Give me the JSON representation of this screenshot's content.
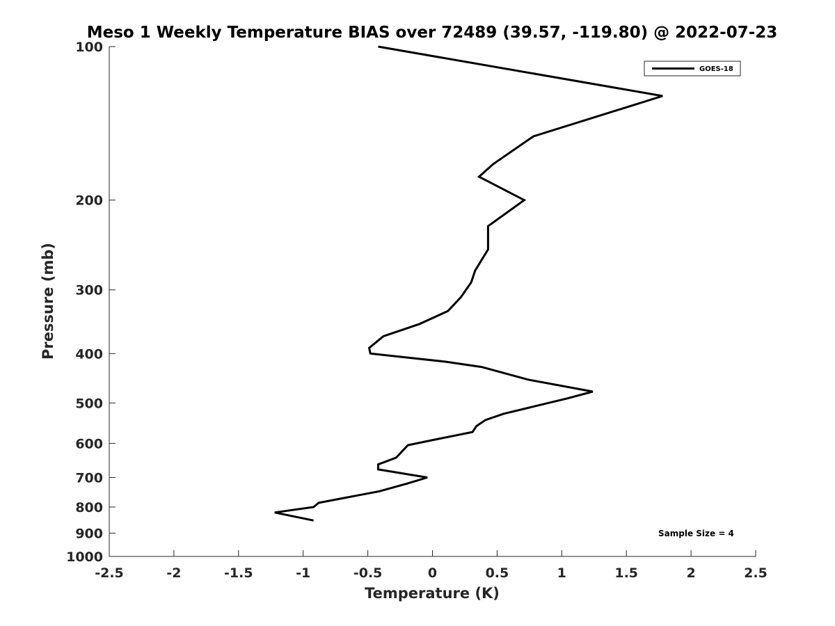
{
  "chart_data": {
    "type": "line",
    "title": "Meso 1 Weekly Temperature BIAS over 72489 (39.57, -119.80) @ 2022-07-23",
    "xlabel": "Temperature (K)",
    "ylabel": "Pressure (mb)",
    "xlim": [
      -2.5,
      2.5
    ],
    "ylim": [
      100,
      1000
    ],
    "y_scale": "log",
    "y_reversed": true,
    "x_ticks": [
      "-2.5",
      "-2",
      "-1.5",
      "-1",
      "-0.5",
      "0",
      "0.5",
      "1",
      "1.5",
      "2",
      "2.5"
    ],
    "y_ticks": [
      "100",
      "200",
      "300",
      "400",
      "500",
      "600",
      "700",
      "800",
      "900",
      "1000"
    ],
    "grid": false,
    "legend": {
      "placement": "top-right",
      "entries": [
        "GOES-18"
      ]
    },
    "annotation": "Sample Size = 4",
    "series": [
      {
        "name": "GOES-18",
        "color": "#000000",
        "points": [
          {
            "x": -0.42,
            "y": 100
          },
          {
            "x": 1.78,
            "y": 125
          },
          {
            "x": 0.78,
            "y": 150
          },
          {
            "x": 0.47,
            "y": 170
          },
          {
            "x": 0.36,
            "y": 180
          },
          {
            "x": 0.71,
            "y": 200
          },
          {
            "x": 0.43,
            "y": 225
          },
          {
            "x": 0.43,
            "y": 250
          },
          {
            "x": 0.33,
            "y": 275
          },
          {
            "x": 0.3,
            "y": 290
          },
          {
            "x": 0.22,
            "y": 310
          },
          {
            "x": 0.12,
            "y": 330
          },
          {
            "x": -0.1,
            "y": 350
          },
          {
            "x": -0.38,
            "y": 370
          },
          {
            "x": -0.49,
            "y": 390
          },
          {
            "x": -0.48,
            "y": 400
          },
          {
            "x": 0.1,
            "y": 415
          },
          {
            "x": 0.38,
            "y": 425
          },
          {
            "x": 0.74,
            "y": 450
          },
          {
            "x": 1.24,
            "y": 475
          },
          {
            "x": 1.04,
            "y": 490
          },
          {
            "x": 0.55,
            "y": 525
          },
          {
            "x": 0.41,
            "y": 540
          },
          {
            "x": 0.34,
            "y": 555
          },
          {
            "x": 0.31,
            "y": 570
          },
          {
            "x": 0.02,
            "y": 590
          },
          {
            "x": -0.19,
            "y": 605
          },
          {
            "x": -0.28,
            "y": 640
          },
          {
            "x": -0.42,
            "y": 660
          },
          {
            "x": -0.42,
            "y": 675
          },
          {
            "x": -0.04,
            "y": 700
          },
          {
            "x": -0.2,
            "y": 720
          },
          {
            "x": -0.41,
            "y": 745
          },
          {
            "x": -0.88,
            "y": 785
          },
          {
            "x": -0.92,
            "y": 800
          },
          {
            "x": -1.22,
            "y": 820
          },
          {
            "x": -0.92,
            "y": 850
          }
        ]
      }
    ]
  }
}
